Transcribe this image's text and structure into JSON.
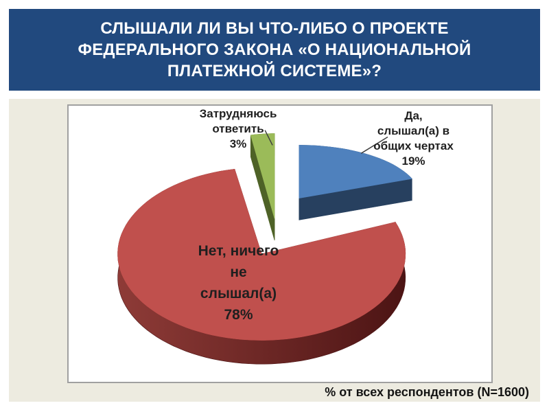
{
  "slide": {
    "title_lines": [
      "СЛЫШАЛИ ЛИ ВЫ ЧТО-ЛИБО О ПРОЕКТЕ",
      "ФЕДЕРАЛЬНОГО ЗАКОНА «О НАЦИОНАЛЬНОЙ",
      "ПЛАТЕЖНОЙ СИСТЕМЕ»?"
    ],
    "footer": "% от всех респондентов (N=1600)",
    "colors": {
      "header_bg": "#21497E",
      "header_text": "#FFFFFF",
      "slide_bg": "#EDEBE0",
      "panel_bg": "#FFFFFF",
      "panel_border": "#A0A0A0",
      "label_text": "#1F1F1F"
    }
  },
  "chart_data": {
    "type": "pie",
    "effect": "3d-exploded",
    "unit": "%",
    "start_angle_deg": 270,
    "direction": "clockwise",
    "note": "% от всех респондентов (N=1600)",
    "sample_size": "N=1600",
    "slices": [
      {
        "key": "yes-heard",
        "label": "Да, слышал(а) в общих чертах",
        "label_lines": [
          "Да,",
          "слышал(а) в",
          "общих чертах",
          "19%"
        ],
        "value": 19,
        "color": "#4F81BD",
        "side_color": "#27405F"
      },
      {
        "key": "no",
        "label": "Нет, ничего не слышал(а)",
        "label_lines": [
          "Нет, ничего",
          "не",
          "слышал(а)",
          "78%"
        ],
        "value": 78,
        "color": "#C0504D",
        "side_color": "#6E2422"
      },
      {
        "key": "undecided",
        "label": "Затрудняюсь ответить",
        "label_lines": [
          "Затрудняюсь",
          "ответить",
          "3%"
        ],
        "value": 3,
        "color": "#9BBB59",
        "side_color": "#4E6227"
      }
    ]
  }
}
